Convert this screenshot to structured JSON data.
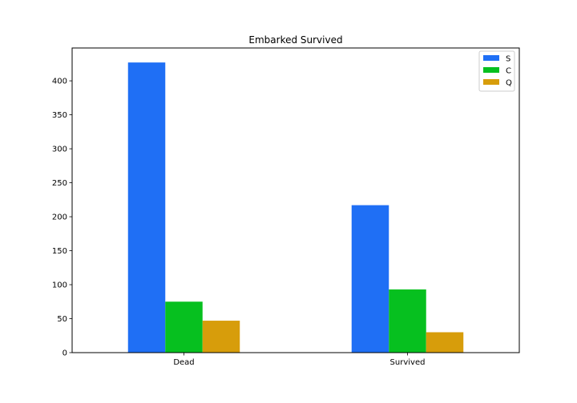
{
  "chart_data": {
    "type": "bar",
    "title": "Embarked Survived",
    "xlabel": "",
    "ylabel": "",
    "categories": [
      "Dead",
      "Survived"
    ],
    "series": [
      {
        "name": "S",
        "values": [
          427,
          217
        ],
        "color": "#1f6ff5"
      },
      {
        "name": "C",
        "values": [
          75,
          93
        ],
        "color": "#06c01f"
      },
      {
        "name": "Q",
        "values": [
          47,
          30
        ],
        "color": "#d79d0b"
      }
    ],
    "yticks": [
      0,
      50,
      100,
      150,
      200,
      250,
      300,
      350,
      400
    ],
    "ylim": [
      0,
      448.35
    ],
    "grid": false,
    "legend_position": "top-right"
  }
}
